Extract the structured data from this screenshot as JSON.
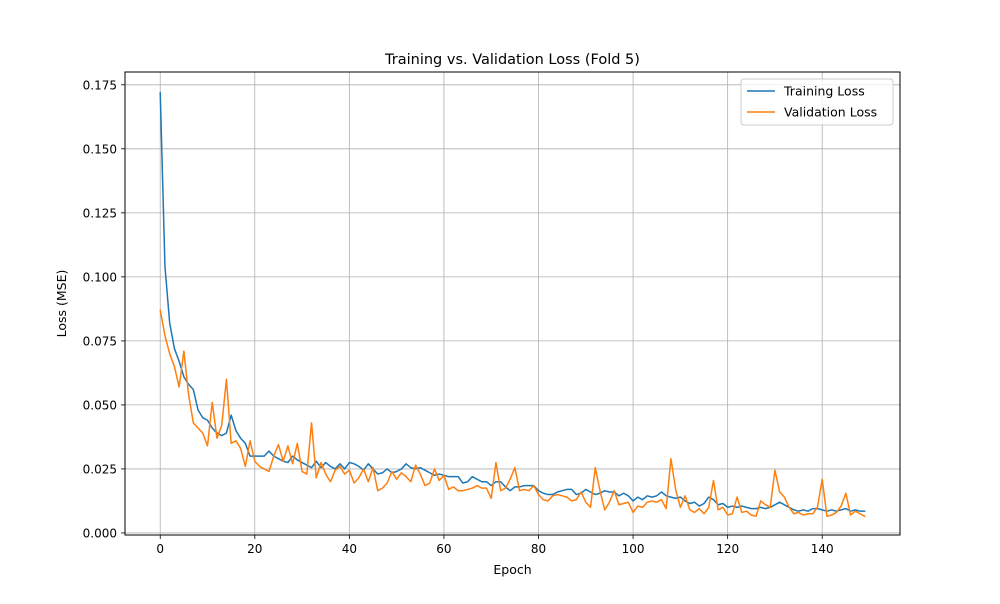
{
  "chart_data": {
    "type": "line",
    "title": "Training vs. Validation Loss (Fold 5)",
    "xlabel": "Epoch",
    "ylabel": "Loss (MSE)",
    "xlim": [
      -7.45,
      156.45
    ],
    "ylim": [
      -0.0008,
      0.18
    ],
    "xticks": [
      0,
      20,
      40,
      60,
      80,
      100,
      120,
      140
    ],
    "yticks": [
      0.0,
      0.025,
      0.05,
      0.075,
      0.1,
      0.125,
      0.15,
      0.175
    ],
    "ytick_labels": [
      "0.000",
      "0.025",
      "0.050",
      "0.075",
      "0.100",
      "0.125",
      "0.150",
      "0.175"
    ],
    "grid": true,
    "legend_position": "top-right",
    "x": [
      0,
      1,
      2,
      3,
      4,
      5,
      6,
      7,
      8,
      9,
      10,
      11,
      12,
      13,
      14,
      15,
      16,
      17,
      18,
      19,
      20,
      21,
      22,
      23,
      24,
      25,
      26,
      27,
      28,
      29,
      30,
      31,
      32,
      33,
      34,
      35,
      36,
      37,
      38,
      39,
      40,
      41,
      42,
      43,
      44,
      45,
      46,
      47,
      48,
      49,
      50,
      51,
      52,
      53,
      54,
      55,
      56,
      57,
      58,
      59,
      60,
      61,
      62,
      63,
      64,
      65,
      66,
      67,
      68,
      69,
      70,
      71,
      72,
      73,
      74,
      75,
      76,
      77,
      78,
      79,
      80,
      81,
      82,
      83,
      84,
      85,
      86,
      87,
      88,
      89,
      90,
      91,
      92,
      93,
      94,
      95,
      96,
      97,
      98,
      99,
      100,
      101,
      102,
      103,
      104,
      105,
      106,
      107,
      108,
      109,
      110,
      111,
      112,
      113,
      114,
      115,
      116,
      117,
      118,
      119,
      120,
      121,
      122,
      123,
      124,
      125,
      126,
      127,
      128,
      129,
      130,
      131,
      132,
      133,
      134,
      135,
      136,
      137,
      138,
      139,
      140,
      141,
      142,
      143,
      144,
      145,
      146,
      147,
      148,
      149
    ],
    "series": [
      {
        "name": "Training Loss",
        "color": "#1f77b4",
        "values": [
          0.172,
          0.104,
          0.082,
          0.072,
          0.067,
          0.061,
          0.058,
          0.056,
          0.048,
          0.045,
          0.044,
          0.041,
          0.039,
          0.038,
          0.039,
          0.046,
          0.04,
          0.037,
          0.035,
          0.03,
          0.03,
          0.03,
          0.03,
          0.032,
          0.03,
          0.029,
          0.028,
          0.0275,
          0.03,
          0.0285,
          0.0275,
          0.0265,
          0.0255,
          0.028,
          0.0255,
          0.0275,
          0.026,
          0.025,
          0.027,
          0.025,
          0.0275,
          0.027,
          0.026,
          0.0245,
          0.027,
          0.025,
          0.023,
          0.0235,
          0.025,
          0.0235,
          0.024,
          0.025,
          0.027,
          0.0255,
          0.025,
          0.0255,
          0.0245,
          0.0235,
          0.0225,
          0.023,
          0.0225,
          0.022,
          0.022,
          0.022,
          0.0195,
          0.02,
          0.022,
          0.021,
          0.02,
          0.02,
          0.0185,
          0.02,
          0.02,
          0.018,
          0.0165,
          0.018,
          0.018,
          0.0185,
          0.0185,
          0.0185,
          0.0165,
          0.0155,
          0.015,
          0.015,
          0.016,
          0.0165,
          0.017,
          0.017,
          0.015,
          0.0155,
          0.017,
          0.016,
          0.015,
          0.0155,
          0.0165,
          0.016,
          0.016,
          0.0145,
          0.0155,
          0.0145,
          0.0125,
          0.014,
          0.013,
          0.0145,
          0.014,
          0.0145,
          0.016,
          0.0145,
          0.014,
          0.0135,
          0.014,
          0.0125,
          0.0115,
          0.012,
          0.0105,
          0.0115,
          0.014,
          0.013,
          0.011,
          0.0115,
          0.01,
          0.0105,
          0.01,
          0.0105,
          0.01,
          0.0095,
          0.0095,
          0.01,
          0.0095,
          0.01,
          0.011,
          0.012,
          0.011,
          0.01,
          0.009,
          0.0085,
          0.009,
          0.0085,
          0.0095,
          0.0095,
          0.009,
          0.0085,
          0.009,
          0.0085,
          0.009,
          0.0095,
          0.0085,
          0.009,
          0.0085,
          0.0085
        ]
      },
      {
        "name": "Validation Loss",
        "color": "#ff7f0e",
        "values": [
          0.087,
          0.077,
          0.07,
          0.065,
          0.057,
          0.071,
          0.054,
          0.043,
          0.041,
          0.039,
          0.034,
          0.051,
          0.037,
          0.042,
          0.06,
          0.035,
          0.036,
          0.033,
          0.026,
          0.036,
          0.028,
          0.026,
          0.025,
          0.024,
          0.03,
          0.0345,
          0.028,
          0.034,
          0.027,
          0.035,
          0.024,
          0.023,
          0.043,
          0.0215,
          0.0275,
          0.023,
          0.02,
          0.0245,
          0.026,
          0.023,
          0.0245,
          0.0195,
          0.0215,
          0.025,
          0.02,
          0.0255,
          0.0165,
          0.0175,
          0.0195,
          0.024,
          0.021,
          0.0235,
          0.022,
          0.02,
          0.0265,
          0.023,
          0.0185,
          0.0195,
          0.025,
          0.0205,
          0.0225,
          0.017,
          0.018,
          0.0165,
          0.0165,
          0.017,
          0.0175,
          0.0185,
          0.0175,
          0.0175,
          0.0135,
          0.0275,
          0.0165,
          0.0175,
          0.021,
          0.0255,
          0.0165,
          0.017,
          0.0165,
          0.0185,
          0.015,
          0.013,
          0.0125,
          0.0145,
          0.015,
          0.0145,
          0.014,
          0.0125,
          0.013,
          0.016,
          0.012,
          0.01,
          0.0255,
          0.0165,
          0.009,
          0.012,
          0.0165,
          0.011,
          0.0115,
          0.012,
          0.008,
          0.0105,
          0.01,
          0.012,
          0.0125,
          0.012,
          0.013,
          0.0095,
          0.029,
          0.017,
          0.01,
          0.0145,
          0.009,
          0.008,
          0.0095,
          0.0075,
          0.01,
          0.0205,
          0.009,
          0.01,
          0.007,
          0.0075,
          0.014,
          0.008,
          0.0085,
          0.007,
          0.0065,
          0.0125,
          0.011,
          0.01,
          0.0245,
          0.016,
          0.014,
          0.01,
          0.0075,
          0.008,
          0.007,
          0.0075,
          0.0075,
          0.01,
          0.021,
          0.0065,
          0.007,
          0.008,
          0.0105,
          0.0155,
          0.007,
          0.0085,
          0.0075,
          0.0065
        ]
      }
    ]
  }
}
